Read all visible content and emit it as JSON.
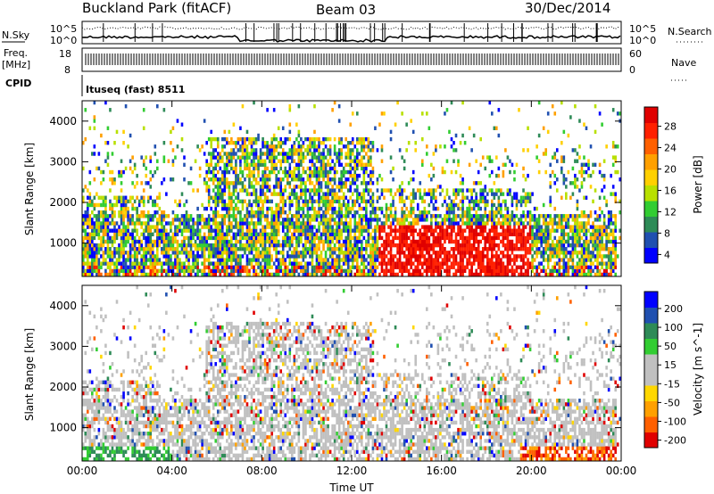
{
  "header": {
    "title": "Buckland Park (fitACF)",
    "beam": "Beam 03",
    "date": "30/Dec/2014"
  },
  "status_panel": {
    "left_labels": {
      "nsky": "N.Sky",
      "freq": "Freq.",
      "freq_unit": "[MHz]",
      "cpid": "CPID"
    },
    "right_labels": {
      "nsearch": "N.Search",
      "nave": "Nave"
    },
    "noise_ticks": [
      "10^5",
      "10^0"
    ],
    "freq_ticks": [
      "18",
      "8"
    ],
    "nave_ticks": [
      "60",
      "0"
    ],
    "cpid_text": "Ituseq (fast) 8511"
  },
  "colors": {
    "power_scale": [
      "#0000ff",
      "#2050b0",
      "#2e8b57",
      "#32cd32",
      "#b8e000",
      "#ffd000",
      "#ffa000",
      "#ff6000",
      "#ff2000",
      "#e00000"
    ],
    "velocity_scale": [
      "#e00000",
      "#ff6000",
      "#ffa000",
      "#ffd700",
      "#c0c0c0",
      "#c0c0c0",
      "#32cd32",
      "#2e8b57",
      "#2050b0",
      "#0000ff"
    ]
  },
  "chart_data": [
    {
      "type": "heatmap",
      "panel": "power",
      "ylabel": "Slant Range [km]",
      "colorbar_label": "Power [dB]",
      "colorbar_ticks": [
        "28",
        "24",
        "20",
        "16",
        "12",
        "8",
        "4"
      ],
      "y_ticks": [
        "4000",
        "3000",
        "2000",
        "1000"
      ],
      "ylim": [
        180,
        4500
      ],
      "clim": [
        0,
        30
      ]
    },
    {
      "type": "heatmap",
      "panel": "velocity",
      "ylabel": "Slant Range [km]",
      "colorbar_label": "Velocity [m s^-1]",
      "colorbar_ticks": [
        "200",
        "100",
        "50",
        "15",
        "-15",
        "-50",
        "-100",
        "-200"
      ],
      "y_ticks": [
        "4000",
        "3000",
        "2000",
        "1000"
      ],
      "ylim": [
        180,
        4500
      ],
      "clim": [
        -250,
        250
      ]
    }
  ],
  "x_axis": {
    "label": "Time UT",
    "ticks": [
      "00:00",
      "04:00",
      "08:00",
      "12:00",
      "16:00",
      "20:00",
      "00:00"
    ],
    "range_hours": [
      0,
      24
    ]
  }
}
